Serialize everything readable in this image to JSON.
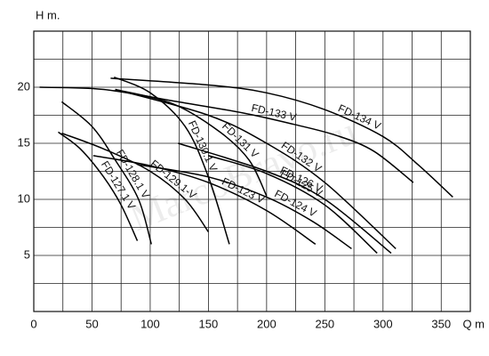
{
  "chart_data": {
    "type": "line",
    "x_label": "Q m",
    "y_label": "H m.",
    "watermark": "MarcoBravo.ru",
    "xlim": [
      0,
      375
    ],
    "ylim": [
      0,
      25
    ],
    "xticks": [
      0,
      50,
      100,
      150,
      200,
      250,
      300,
      350
    ],
    "yticks": [
      5,
      10,
      15,
      20
    ],
    "xgrid": [
      25,
      50,
      75,
      100,
      125,
      150,
      175,
      200,
      225,
      250,
      275,
      300,
      325,
      350
    ],
    "ygrid": [
      2.5,
      5,
      7.5,
      10,
      12.5,
      15,
      17.5,
      20,
      22.5
    ],
    "grid": true,
    "series": [
      {
        "name": "FD-127.1 V",
        "color": "#000000",
        "x": [
          21,
          40,
          60,
          75,
          89
        ],
        "values": [
          16,
          14.5,
          12,
          9.5,
          6.3
        ]
      },
      {
        "name": "FD-128.1 V",
        "color": "#000000",
        "x": [
          24,
          50,
          70,
          90,
          101
        ],
        "values": [
          18.7,
          16.5,
          13.5,
          10,
          6
        ]
      },
      {
        "name": "FD-129.1-V",
        "color": "#000000",
        "x": [
          24,
          60,
          100,
          130,
          150
        ],
        "values": [
          15.9,
          14.5,
          12.5,
          10,
          7.1
        ]
      },
      {
        "name": "FD-130.1 V",
        "color": "#000000",
        "x": [
          69,
          100,
          130,
          150,
          168
        ],
        "values": [
          20.9,
          19.5,
          16.5,
          12,
          6
        ]
      },
      {
        "name": "FD-131 V",
        "color": "#000000",
        "x": [
          70,
          120,
          160,
          185,
          200
        ],
        "values": [
          19.8,
          18.5,
          16,
          13.5,
          10.3
        ]
      },
      {
        "name": "FD-132 V",
        "color": "#000000",
        "x": [
          70,
          150,
          200,
          250,
          311
        ],
        "values": [
          19.8,
          17.5,
          15,
          11.5,
          5.6
        ]
      },
      {
        "name": "FD-123 V",
        "color": "#000000",
        "x": [
          51,
          100,
          150,
          200,
          242
        ],
        "values": [
          13.9,
          13,
          11.5,
          9,
          6
        ]
      },
      {
        "name": "FD-124 V",
        "color": "#000000",
        "x": [
          89,
          150,
          200,
          240,
          273
        ],
        "values": [
          13.1,
          12,
          10.2,
          8,
          5.6
        ]
      },
      {
        "name": "FD-125 V",
        "color": "#000000",
        "x": [
          150,
          200,
          250,
          295
        ],
        "values": [
          13.9,
          12.3,
          9.5,
          5.2
        ]
      },
      {
        "name": "FD-126 V",
        "color": "#000000",
        "x": [
          124,
          200,
          250,
          307
        ],
        "values": [
          15,
          12.5,
          10,
          5.2
        ]
      },
      {
        "name": "FD-133 V",
        "color": "#000000",
        "x": [
          5,
          60,
          124,
          180,
          223,
          260,
          292,
          326
        ],
        "values": [
          20,
          19.8,
          18.7,
          17.7,
          16.7,
          15.7,
          14.3,
          11.5
        ]
      },
      {
        "name": "FD-134 V",
        "color": "#000000",
        "x": [
          66,
          150,
          200,
          250,
          300,
          330,
          360
        ],
        "values": [
          20.8,
          20.2,
          19.5,
          18,
          15.6,
          13.1,
          10.2
        ]
      }
    ]
  }
}
